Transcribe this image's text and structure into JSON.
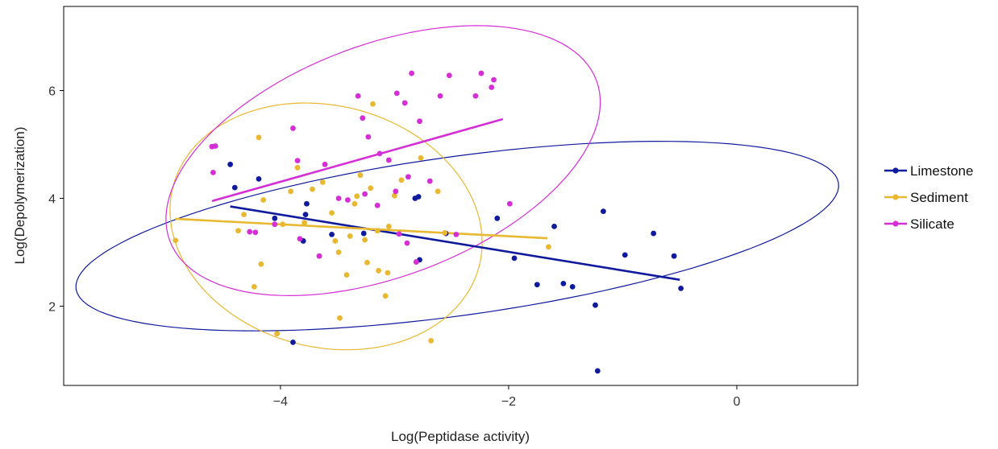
{
  "chart_data": {
    "type": "scatter",
    "title": "",
    "xlabel": "Log(Peptidase activity)",
    "ylabel": "Log(Depolymerization)",
    "xlim": [
      -5.9,
      1.06
    ],
    "ylim": [
      0.53,
      7.56
    ],
    "xticks": [
      -4,
      -2,
      0
    ],
    "yticks": [
      2,
      4,
      6
    ],
    "grid": false,
    "legend": {
      "position": "right",
      "entries": [
        "Limestone",
        "Sediment",
        "Silicate"
      ]
    },
    "series": [
      {
        "name": "Limestone",
        "color": "#0f1a9c",
        "points": [
          [
            -4.44,
            4.63
          ],
          [
            -4.4,
            4.2
          ],
          [
            -4.19,
            4.36
          ],
          [
            -4.05,
            3.63
          ],
          [
            -3.89,
            1.33
          ],
          [
            -3.8,
            3.21
          ],
          [
            -3.78,
            3.7
          ],
          [
            -3.77,
            3.9
          ],
          [
            -3.55,
            3.33
          ],
          [
            -3.27,
            3.35
          ],
          [
            -2.82,
            4.0
          ],
          [
            -2.79,
            4.03
          ],
          [
            -2.78,
            2.86
          ],
          [
            -2.55,
            3.35
          ],
          [
            -2.1,
            3.63
          ],
          [
            -1.95,
            2.89
          ],
          [
            -1.75,
            2.4
          ],
          [
            -1.6,
            3.48
          ],
          [
            -1.52,
            2.42
          ],
          [
            -1.44,
            2.36
          ],
          [
            -1.24,
            2.02
          ],
          [
            -1.22,
            0.8
          ],
          [
            -1.17,
            3.76
          ],
          [
            -0.98,
            2.95
          ],
          [
            -0.73,
            3.35
          ],
          [
            -0.55,
            2.93
          ],
          [
            -0.49,
            2.33
          ]
        ],
        "fit": [
          [
            -4.44,
            3.85
          ],
          [
            -0.5,
            2.49
          ]
        ]
      },
      {
        "name": "Sediment",
        "color": "#e8b830",
        "points": [
          [
            -4.92,
            3.22
          ],
          [
            -4.37,
            3.4
          ],
          [
            -4.32,
            3.7
          ],
          [
            -4.23,
            2.36
          ],
          [
            -4.19,
            5.13
          ],
          [
            -4.17,
            2.78
          ],
          [
            -4.15,
            3.97
          ],
          [
            -4.03,
            1.49
          ],
          [
            -3.98,
            3.52
          ],
          [
            -3.91,
            4.13
          ],
          [
            -3.85,
            4.57
          ],
          [
            -3.79,
            3.55
          ],
          [
            -3.72,
            4.17
          ],
          [
            -3.63,
            4.3
          ],
          [
            -3.55,
            3.73
          ],
          [
            -3.52,
            3.21
          ],
          [
            -3.49,
            3.0
          ],
          [
            -3.42,
            2.58
          ],
          [
            -3.39,
            3.3
          ],
          [
            -3.35,
            3.9
          ],
          [
            -3.33,
            4.04
          ],
          [
            -3.3,
            4.43
          ],
          [
            -3.26,
            3.23
          ],
          [
            -3.24,
            2.81
          ],
          [
            -3.21,
            4.19
          ],
          [
            -3.19,
            5.75
          ],
          [
            -3.15,
            3.4
          ],
          [
            -3.14,
            2.66
          ],
          [
            -3.08,
            2.19
          ],
          [
            -3.06,
            2.62
          ],
          [
            -3.05,
            3.48
          ],
          [
            -3.0,
            4.05
          ],
          [
            -2.94,
            4.34
          ],
          [
            -2.77,
            4.75
          ],
          [
            -2.68,
            1.36
          ],
          [
            -2.62,
            4.13
          ],
          [
            -2.56,
            3.36
          ],
          [
            -1.65,
            3.1
          ],
          [
            -3.48,
            1.78
          ]
        ],
        "fit": [
          [
            -4.92,
            3.62
          ],
          [
            -1.66,
            3.26
          ]
        ]
      },
      {
        "name": "Silicate",
        "color": "#d42ed4",
        "points": [
          [
            -4.6,
            4.96
          ],
          [
            -4.57,
            4.97
          ],
          [
            -4.59,
            4.48
          ],
          [
            -4.27,
            3.38
          ],
          [
            -4.22,
            3.37
          ],
          [
            -4.05,
            3.52
          ],
          [
            -3.89,
            5.3
          ],
          [
            -3.85,
            4.7
          ],
          [
            -3.83,
            3.25
          ],
          [
            -3.66,
            2.93
          ],
          [
            -3.61,
            4.63
          ],
          [
            -3.49,
            4.0
          ],
          [
            -3.41,
            3.97
          ],
          [
            -3.32,
            5.9
          ],
          [
            -3.28,
            5.49
          ],
          [
            -3.26,
            4.08
          ],
          [
            -3.23,
            5.14
          ],
          [
            -3.15,
            3.87
          ],
          [
            -3.13,
            4.83
          ],
          [
            -3.05,
            4.71
          ],
          [
            -2.99,
            4.13
          ],
          [
            -2.98,
            5.95
          ],
          [
            -2.96,
            3.34
          ],
          [
            -2.91,
            5.77
          ],
          [
            -2.89,
            3.17
          ],
          [
            -2.88,
            4.4
          ],
          [
            -2.85,
            6.32
          ],
          [
            -2.81,
            2.82
          ],
          [
            -2.78,
            5.43
          ],
          [
            -2.69,
            4.32
          ],
          [
            -2.6,
            5.9
          ],
          [
            -2.52,
            6.28
          ],
          [
            -2.46,
            3.33
          ],
          [
            -2.29,
            5.9
          ],
          [
            -2.24,
            6.32
          ],
          [
            -2.15,
            6.06
          ],
          [
            -2.13,
            6.2
          ],
          [
            -1.99,
            3.9
          ]
        ],
        "fit": [
          [
            -4.6,
            3.95
          ],
          [
            -2.05,
            5.47
          ]
        ]
      }
    ],
    "ellipses": [
      {
        "series": "Limestone",
        "cx": -2.45,
        "cy": 3.3,
        "rx": 3.5,
        "ry": 1.42,
        "angle": 0.33
      },
      {
        "series": "Sediment",
        "cx": -3.6,
        "cy": 3.48,
        "rx": 1.35,
        "ry": 2.3,
        "angle": 0.12
      },
      {
        "series": "Silicate",
        "cx": -3.1,
        "cy": 4.7,
        "rx": 1.58,
        "ry": 2.72,
        "angle": -0.5
      }
    ]
  }
}
